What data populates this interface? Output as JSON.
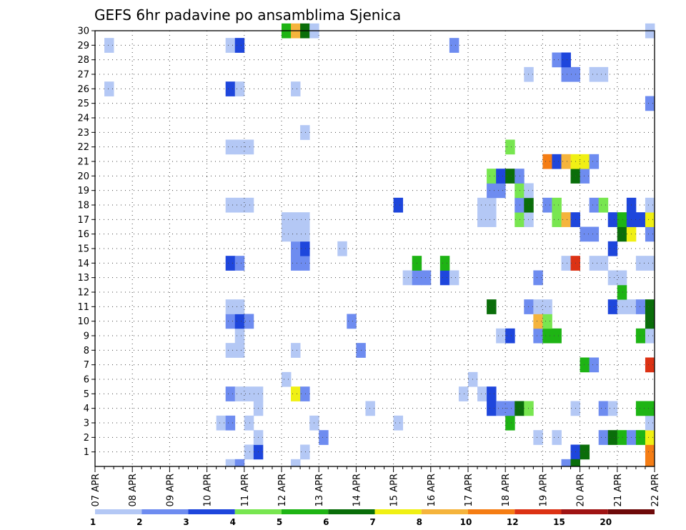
{
  "chart_data": {
    "type": "heatmap",
    "title": "GEFS 6hr padavine po ansamblima Sjenica",
    "xlabel": "",
    "ylabel": "",
    "grid": true,
    "legend_placement": "bottom",
    "x_tick_labels": [
      "07 APR",
      "08 APR",
      "09 APR",
      "10 APR",
      "11 APR",
      "12 APR",
      "13 APR",
      "14 APR",
      "15 APR",
      "16 APR",
      "17 APR",
      "18 APR",
      "19 APR",
      "20 APR",
      "21 APR",
      "22 APR"
    ],
    "x_range": [
      0,
      60
    ],
    "x_unit": "6-hour steps from 07 APR 00Z",
    "y_tick_labels": [
      "1",
      "2",
      "3",
      "4",
      "5",
      "6",
      "7",
      "8",
      "9",
      "10",
      "11",
      "12",
      "13",
      "14",
      "15",
      "16",
      "17",
      "18",
      "19",
      "20",
      "21",
      "22",
      "23",
      "24",
      "25",
      "26",
      "27",
      "28",
      "29",
      "30"
    ],
    "y_range": [
      0,
      30
    ],
    "color_scale": {
      "boundaries": [
        "1",
        "2",
        "3",
        "4",
        "5",
        "6",
        "7",
        "8",
        "10",
        "12",
        "15",
        "20"
      ],
      "colors": [
        "#b4c8f5",
        "#6e8cf0",
        "#1e46dc",
        "#78e650",
        "#1eb414",
        "#0a6e0a",
        "#f0f014",
        "#f5b43c",
        "#f57d14",
        "#dc3214",
        "#a01414",
        "#6e0a0a"
      ]
    },
    "cells": [
      {
        "m": 0,
        "t": 16,
        "c": 0
      },
      {
        "m": 0,
        "t": 17,
        "c": 2
      },
      {
        "m": 0,
        "t": 22,
        "c": 0
      },
      {
        "m": 0,
        "t": 51,
        "c": 2
      },
      {
        "m": 0,
        "t": 52,
        "c": 5
      },
      {
        "m": 0,
        "t": 59,
        "c": 8
      },
      {
        "m": 1,
        "t": 17,
        "c": 0
      },
      {
        "m": 1,
        "t": 24,
        "c": 1
      },
      {
        "m": 1,
        "t": 47,
        "c": 0
      },
      {
        "m": 1,
        "t": 49,
        "c": 0
      },
      {
        "m": 1,
        "t": 54,
        "c": 1
      },
      {
        "m": 1,
        "t": 55,
        "c": 5
      },
      {
        "m": 1,
        "t": 56,
        "c": 4
      },
      {
        "m": 1,
        "t": 57,
        "c": 1
      },
      {
        "m": 1,
        "t": 58,
        "c": 4
      },
      {
        "m": 1,
        "t": 59,
        "c": 6
      },
      {
        "m": 2,
        "t": 13,
        "c": 0
      },
      {
        "m": 2,
        "t": 14,
        "c": 1
      },
      {
        "m": 2,
        "t": 16,
        "c": 0
      },
      {
        "m": 2,
        "t": 23,
        "c": 0
      },
      {
        "m": 2,
        "t": 32,
        "c": 0
      },
      {
        "m": 2,
        "t": 44,
        "c": 4
      },
      {
        "m": 2,
        "t": 59,
        "c": 0
      },
      {
        "m": 3,
        "t": 17,
        "c": 0
      },
      {
        "m": 3,
        "t": 29,
        "c": 0
      },
      {
        "m": 3,
        "t": 42,
        "c": 2
      },
      {
        "m": 3,
        "t": 43,
        "c": 1
      },
      {
        "m": 3,
        "t": 44,
        "c": 1
      },
      {
        "m": 3,
        "t": 45,
        "c": 5
      },
      {
        "m": 3,
        "t": 46,
        "c": 3
      },
      {
        "m": 3,
        "t": 51,
        "c": 0
      },
      {
        "m": 3,
        "t": 54,
        "c": 1
      },
      {
        "m": 3,
        "t": 55,
        "c": 0
      },
      {
        "m": 3,
        "t": 58,
        "c": 4
      },
      {
        "m": 3,
        "t": 59,
        "c": 4
      },
      {
        "m": 4,
        "t": 14,
        "c": 1
      },
      {
        "m": 4,
        "t": 15,
        "c": 0
      },
      {
        "m": 4,
        "t": 16,
        "c": 0
      },
      {
        "m": 4,
        "t": 17,
        "c": 0
      },
      {
        "m": 4,
        "t": 21,
        "c": 6
      },
      {
        "m": 4,
        "t": 22,
        "c": 1
      },
      {
        "m": 4,
        "t": 39,
        "c": 0
      },
      {
        "m": 4,
        "t": 41,
        "c": 0
      },
      {
        "m": 4,
        "t": 42,
        "c": 2
      },
      {
        "m": 5,
        "t": 20,
        "c": 0
      },
      {
        "m": 5,
        "t": 40,
        "c": 0
      },
      {
        "m": 6,
        "t": 52,
        "c": 4
      },
      {
        "m": 6,
        "t": 53,
        "c": 1
      },
      {
        "m": 6,
        "t": 59,
        "c": 9
      },
      {
        "m": 7,
        "t": 14,
        "c": 0
      },
      {
        "m": 7,
        "t": 15,
        "c": 0
      },
      {
        "m": 7,
        "t": 21,
        "c": 0
      },
      {
        "m": 7,
        "t": 28,
        "c": 1
      },
      {
        "m": 8,
        "t": 15,
        "c": 0
      },
      {
        "m": 8,
        "t": 43,
        "c": 0
      },
      {
        "m": 8,
        "t": 44,
        "c": 2
      },
      {
        "m": 8,
        "t": 47,
        "c": 1
      },
      {
        "m": 8,
        "t": 48,
        "c": 4
      },
      {
        "m": 8,
        "t": 49,
        "c": 4
      },
      {
        "m": 8,
        "t": 58,
        "c": 4
      },
      {
        "m": 8,
        "t": 59,
        "c": 0
      },
      {
        "m": 9,
        "t": 14,
        "c": 1
      },
      {
        "m": 9,
        "t": 15,
        "c": 2
      },
      {
        "m": 9,
        "t": 16,
        "c": 1
      },
      {
        "m": 9,
        "t": 27,
        "c": 1
      },
      {
        "m": 9,
        "t": 47,
        "c": 7
      },
      {
        "m": 9,
        "t": 48,
        "c": 3
      },
      {
        "m": 9,
        "t": 59,
        "c": 5
      },
      {
        "m": 10,
        "t": 14,
        "c": 0
      },
      {
        "m": 10,
        "t": 15,
        "c": 0
      },
      {
        "m": 10,
        "t": 42,
        "c": 5
      },
      {
        "m": 10,
        "t": 46,
        "c": 1
      },
      {
        "m": 10,
        "t": 47,
        "c": 0
      },
      {
        "m": 10,
        "t": 48,
        "c": 0
      },
      {
        "m": 10,
        "t": 55,
        "c": 2
      },
      {
        "m": 10,
        "t": 56,
        "c": 0
      },
      {
        "m": 10,
        "t": 57,
        "c": 0
      },
      {
        "m": 10,
        "t": 58,
        "c": 1
      },
      {
        "m": 10,
        "t": 59,
        "c": 5
      },
      {
        "m": 11,
        "t": 56,
        "c": 4
      },
      {
        "m": 12,
        "t": 33,
        "c": 0
      },
      {
        "m": 12,
        "t": 34,
        "c": 1
      },
      {
        "m": 12,
        "t": 35,
        "c": 1
      },
      {
        "m": 12,
        "t": 37,
        "c": 2
      },
      {
        "m": 12,
        "t": 38,
        "c": 0
      },
      {
        "m": 12,
        "t": 47,
        "c": 1
      },
      {
        "m": 12,
        "t": 55,
        "c": 0
      },
      {
        "m": 12,
        "t": 56,
        "c": 0
      },
      {
        "m": 13,
        "t": 14,
        "c": 2
      },
      {
        "m": 13,
        "t": 15,
        "c": 1
      },
      {
        "m": 13,
        "t": 21,
        "c": 1
      },
      {
        "m": 13,
        "t": 22,
        "c": 1
      },
      {
        "m": 13,
        "t": 34,
        "c": 4
      },
      {
        "m": 13,
        "t": 37,
        "c": 4
      },
      {
        "m": 13,
        "t": 50,
        "c": 0
      },
      {
        "m": 13,
        "t": 51,
        "c": 9
      },
      {
        "m": 13,
        "t": 53,
        "c": 0
      },
      {
        "m": 13,
        "t": 54,
        "c": 0
      },
      {
        "m": 13,
        "t": 58,
        "c": 0
      },
      {
        "m": 13,
        "t": 59,
        "c": 0
      },
      {
        "m": 14,
        "t": 21,
        "c": 1
      },
      {
        "m": 14,
        "t": 22,
        "c": 2
      },
      {
        "m": 14,
        "t": 26,
        "c": 0
      },
      {
        "m": 14,
        "t": 55,
        "c": 2
      },
      {
        "m": 15,
        "t": 20,
        "c": 0
      },
      {
        "m": 15,
        "t": 21,
        "c": 0
      },
      {
        "m": 15,
        "t": 22,
        "c": 0
      },
      {
        "m": 15,
        "t": 52,
        "c": 1
      },
      {
        "m": 15,
        "t": 53,
        "c": 1
      },
      {
        "m": 15,
        "t": 56,
        "c": 5
      },
      {
        "m": 15,
        "t": 57,
        "c": 6
      },
      {
        "m": 15,
        "t": 59,
        "c": 1
      },
      {
        "m": 16,
        "t": 20,
        "c": 0
      },
      {
        "m": 16,
        "t": 21,
        "c": 0
      },
      {
        "m": 16,
        "t": 22,
        "c": 0
      },
      {
        "m": 16,
        "t": 41,
        "c": 0
      },
      {
        "m": 16,
        "t": 42,
        "c": 0
      },
      {
        "m": 16,
        "t": 45,
        "c": 3
      },
      {
        "m": 16,
        "t": 46,
        "c": 0
      },
      {
        "m": 16,
        "t": 49,
        "c": 3
      },
      {
        "m": 16,
        "t": 50,
        "c": 7
      },
      {
        "m": 16,
        "t": 51,
        "c": 2
      },
      {
        "m": 16,
        "t": 55,
        "c": 2
      },
      {
        "m": 16,
        "t": 56,
        "c": 4
      },
      {
        "m": 16,
        "t": 57,
        "c": 2
      },
      {
        "m": 16,
        "t": 58,
        "c": 2
      },
      {
        "m": 16,
        "t": 59,
        "c": 6
      },
      {
        "m": 17,
        "t": 14,
        "c": 0
      },
      {
        "m": 17,
        "t": 15,
        "c": 0
      },
      {
        "m": 17,
        "t": 16,
        "c": 0
      },
      {
        "m": 17,
        "t": 32,
        "c": 2
      },
      {
        "m": 17,
        "t": 41,
        "c": 0
      },
      {
        "m": 17,
        "t": 42,
        "c": 0
      },
      {
        "m": 17,
        "t": 45,
        "c": 1
      },
      {
        "m": 17,
        "t": 46,
        "c": 5
      },
      {
        "m": 17,
        "t": 48,
        "c": 1
      },
      {
        "m": 17,
        "t": 49,
        "c": 3
      },
      {
        "m": 17,
        "t": 53,
        "c": 1
      },
      {
        "m": 17,
        "t": 54,
        "c": 3
      },
      {
        "m": 17,
        "t": 57,
        "c": 2
      },
      {
        "m": 17,
        "t": 59,
        "c": 0
      },
      {
        "m": 18,
        "t": 42,
        "c": 1
      },
      {
        "m": 18,
        "t": 43,
        "c": 1
      },
      {
        "m": 18,
        "t": 45,
        "c": 3
      },
      {
        "m": 18,
        "t": 46,
        "c": 0
      },
      {
        "m": 19,
        "t": 42,
        "c": 3
      },
      {
        "m": 19,
        "t": 43,
        "c": 2
      },
      {
        "m": 19,
        "t": 44,
        "c": 5
      },
      {
        "m": 19,
        "t": 45,
        "c": 1
      },
      {
        "m": 19,
        "t": 51,
        "c": 5
      },
      {
        "m": 19,
        "t": 52,
        "c": 1
      },
      {
        "m": 20,
        "t": 48,
        "c": 8
      },
      {
        "m": 20,
        "t": 49,
        "c": 2
      },
      {
        "m": 20,
        "t": 50,
        "c": 7
      },
      {
        "m": 20,
        "t": 51,
        "c": 6
      },
      {
        "m": 20,
        "t": 52,
        "c": 6
      },
      {
        "m": 20,
        "t": 53,
        "c": 1
      },
      {
        "m": 21,
        "t": 14,
        "c": 0
      },
      {
        "m": 21,
        "t": 15,
        "c": 0
      },
      {
        "m": 21,
        "t": 16,
        "c": 0
      },
      {
        "m": 21,
        "t": 44,
        "c": 3
      },
      {
        "m": 22,
        "t": 22,
        "c": 0
      },
      {
        "m": 24,
        "t": 59,
        "c": 1
      },
      {
        "m": 25,
        "t": 1,
        "c": 0
      },
      {
        "m": 25,
        "t": 14,
        "c": 2
      },
      {
        "m": 25,
        "t": 15,
        "c": 0
      },
      {
        "m": 25,
        "t": 21,
        "c": 0
      },
      {
        "m": 26,
        "t": 46,
        "c": 0
      },
      {
        "m": 26,
        "t": 50,
        "c": 1
      },
      {
        "m": 26,
        "t": 51,
        "c": 1
      },
      {
        "m": 26,
        "t": 53,
        "c": 0
      },
      {
        "m": 26,
        "t": 54,
        "c": 0
      },
      {
        "m": 27,
        "t": 49,
        "c": 1
      },
      {
        "m": 27,
        "t": 50,
        "c": 2
      },
      {
        "m": 28,
        "t": 1,
        "c": 0
      },
      {
        "m": 28,
        "t": 14,
        "c": 0
      },
      {
        "m": 28,
        "t": 15,
        "c": 2
      },
      {
        "m": 28,
        "t": 38,
        "c": 1
      },
      {
        "m": 29,
        "t": 20,
        "c": 4
      },
      {
        "m": 29,
        "t": 21,
        "c": 7
      },
      {
        "m": 29,
        "t": 22,
        "c": 5
      },
      {
        "m": 29,
        "t": 23,
        "c": 0
      },
      {
        "m": 29,
        "t": 59,
        "c": 0
      }
    ],
    "bottom_cells": [
      {
        "t": 14,
        "c": 0
      },
      {
        "t": 15,
        "c": 1
      },
      {
        "t": 21,
        "c": 0
      },
      {
        "t": 50,
        "c": 1
      },
      {
        "t": 51,
        "c": 5
      },
      {
        "t": 59,
        "c": 8
      }
    ]
  }
}
